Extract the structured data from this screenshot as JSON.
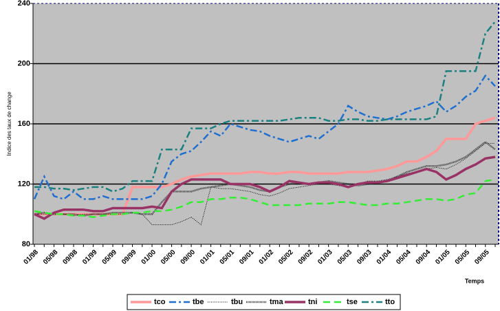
{
  "chart_data": {
    "type": "line",
    "y_label": "Indice des taux de change",
    "x_label": "Temps",
    "categories": [
      "01/98",
      null,
      "05/98",
      null,
      "09/98",
      null,
      "01/99",
      null,
      "05/99",
      null,
      "09/99",
      null,
      "01/00",
      null,
      "05/00",
      null,
      "09/00",
      null,
      "01/01",
      null,
      "05/01",
      null,
      "09/01",
      null,
      "01/02",
      null,
      "05/02",
      null,
      "09/02",
      null,
      "01/03",
      null,
      "05/03",
      null,
      "09/03",
      null,
      "01/04",
      null,
      "05/04",
      null,
      "09/04",
      null,
      "01/05",
      null,
      "05/05",
      null,
      "09/05",
      null
    ],
    "ylim": [
      80,
      240
    ],
    "yticks": [
      80,
      120,
      160,
      200,
      240
    ],
    "grid": true,
    "series": [
      {
        "name": "tco",
        "color": "#ff9999",
        "values": [
          100,
          100,
          100,
          100,
          100,
          100,
          100,
          100,
          100,
          100,
          118,
          118,
          118,
          118,
          120,
          123,
          125,
          126,
          127,
          127,
          127,
          127,
          128,
          128,
          127,
          127,
          128,
          128,
          127,
          127,
          127,
          127,
          128,
          128,
          128,
          129,
          130,
          132,
          135,
          135,
          138,
          142,
          150,
          150,
          150,
          160,
          162,
          164
        ]
      },
      {
        "name": "tbe",
        "color": "#1f6fd0",
        "values": [
          110,
          125,
          112,
          110,
          115,
          110,
          110,
          112,
          110,
          110,
          110,
          110,
          112,
          120,
          135,
          140,
          142,
          148,
          155,
          152,
          160,
          158,
          156,
          155,
          152,
          150,
          148,
          150,
          152,
          150,
          155,
          160,
          172,
          168,
          165,
          164,
          163,
          165,
          168,
          170,
          172,
          175,
          168,
          172,
          178,
          182,
          192,
          185
        ]
      },
      {
        "name": "tbu",
        "color": "#000000",
        "values": [
          100,
          100,
          100,
          100,
          99,
          100,
          100,
          100,
          100,
          100,
          101,
          100,
          93,
          93,
          93,
          95,
          98,
          93,
          118,
          117,
          117,
          116,
          115,
          113,
          112,
          114,
          117,
          118,
          119,
          120,
          120,
          119,
          118,
          120,
          122,
          122,
          123,
          125,
          127,
          128,
          130,
          131,
          130,
          133,
          137,
          142,
          147,
          147
        ]
      },
      {
        "name": "tma",
        "color": "#333333",
        "values": [
          100,
          101,
          100,
          100,
          100,
          99,
          100,
          100,
          101,
          101,
          101,
          100,
          100,
          108,
          115,
          115,
          115,
          117,
          118,
          119,
          120,
          119,
          118,
          116,
          115,
          118,
          120,
          121,
          120,
          121,
          122,
          121,
          120,
          119,
          120,
          121,
          122,
          125,
          128,
          130,
          132,
          132,
          133,
          135,
          138,
          143,
          148,
          143
        ]
      },
      {
        "name": "tni",
        "color": "#993366",
        "values": [
          100,
          97,
          101,
          103,
          103,
          103,
          102,
          102,
          104,
          104,
          104,
          104,
          105,
          104,
          115,
          120,
          123,
          123,
          123,
          123,
          120,
          120,
          120,
          118,
          115,
          118,
          122,
          121,
          120,
          121,
          121,
          120,
          118,
          120,
          121,
          121,
          122,
          124,
          126,
          128,
          130,
          128,
          123,
          126,
          130,
          133,
          137,
          138
        ]
      },
      {
        "name": "tse",
        "color": "#33ee33",
        "values": [
          102,
          101,
          100,
          100,
          99,
          99,
          98,
          99,
          100,
          100,
          101,
          101,
          102,
          102,
          103,
          105,
          108,
          108,
          110,
          110,
          111,
          111,
          110,
          108,
          106,
          106,
          106,
          106,
          107,
          107,
          107,
          108,
          108,
          107,
          106,
          106,
          107,
          107,
          108,
          109,
          110,
          110,
          109,
          110,
          113,
          114,
          122,
          123
        ]
      },
      {
        "name": "tto",
        "color": "#1a8080",
        "values": [
          118,
          118,
          117,
          117,
          116,
          117,
          118,
          118,
          115,
          117,
          122,
          122,
          122,
          143,
          143,
          143,
          157,
          157,
          157,
          160,
          162,
          162,
          162,
          162,
          162,
          162,
          163,
          164,
          164,
          164,
          162,
          162,
          163,
          163,
          162,
          162,
          163,
          163,
          163,
          163,
          163,
          165,
          195,
          195,
          195,
          195,
          220,
          228
        ]
      }
    ]
  }
}
